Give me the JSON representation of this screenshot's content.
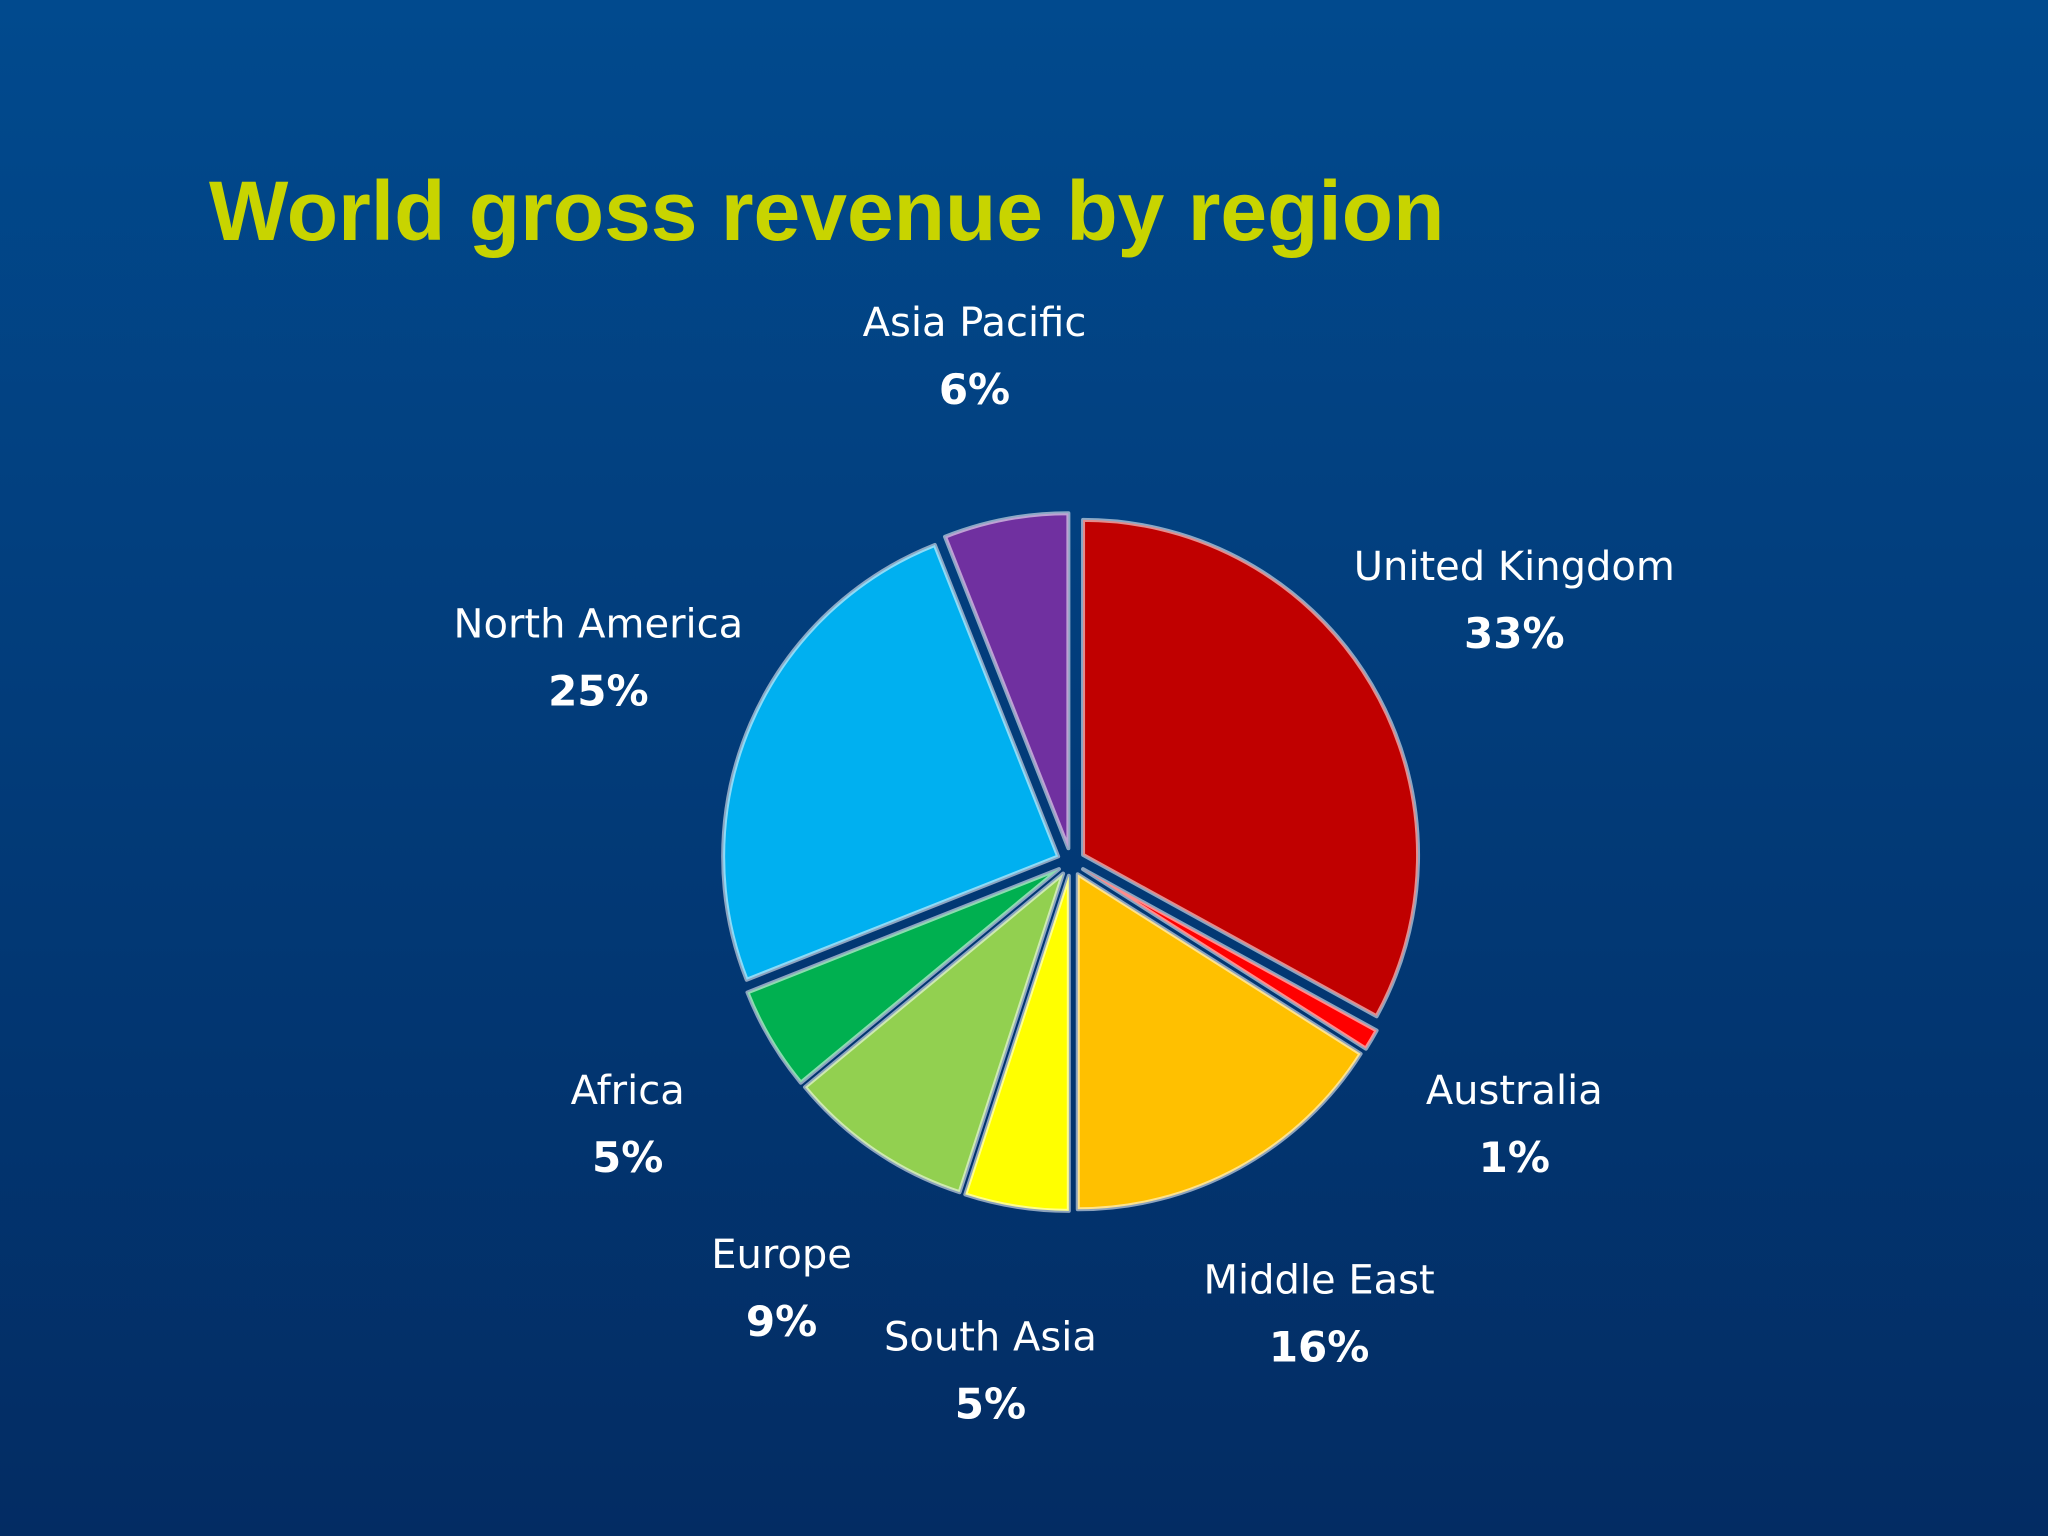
{
  "chart_data": {
    "type": "pie",
    "title": "World gross revenue by region",
    "categories": [
      "United Kingdom",
      "Australia",
      "Middle East",
      "South Asia",
      "Europe",
      "Africa",
      "North America",
      "Asia Pacific"
    ],
    "values": [
      33,
      1,
      16,
      5,
      9,
      5,
      25,
      6
    ],
    "value_labels": [
      "33%",
      "1%",
      "16%",
      "5%",
      "9%",
      "5%",
      "25%",
      "6%"
    ],
    "colors": [
      "#c00000",
      "#ff0000",
      "#ffc000",
      "#ffff00",
      "#92d050",
      "#00b050",
      "#00b0f0",
      "#7030a0"
    ]
  }
}
